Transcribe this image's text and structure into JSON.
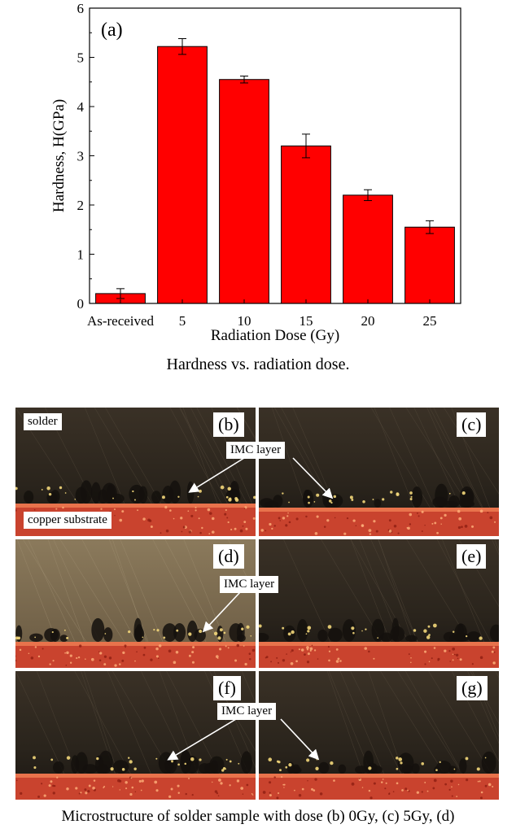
{
  "chart_data": {
    "type": "bar",
    "panel_label": "(a)",
    "categories": [
      "As-received",
      "5",
      "10",
      "15",
      "20",
      "25"
    ],
    "values": [
      0.2,
      5.22,
      4.55,
      3.2,
      2.2,
      1.55
    ],
    "errors": [
      0.1,
      0.16,
      0.07,
      0.24,
      0.11,
      0.13
    ],
    "ylabel": "Hardness, H(GPa)",
    "xlabel": "Radiation Dose (Gy)",
    "ylim": [
      0,
      6
    ],
    "yticks": [
      0,
      1,
      2,
      3,
      4,
      5,
      6
    ],
    "bar_color": "#ff0000",
    "grid": false,
    "caption": "Hardness vs. radiation dose."
  },
  "micrographs": {
    "panels": [
      {
        "id": "b",
        "label": "(b)",
        "tone": "dark",
        "substrate": "bright"
      },
      {
        "id": "c",
        "label": "(c)",
        "tone": "dark",
        "substrate": "bright"
      },
      {
        "id": "d",
        "label": "(d)",
        "tone": "light",
        "substrate": "bright"
      },
      {
        "id": "e",
        "label": "(e)",
        "tone": "dark",
        "substrate": "bright"
      },
      {
        "id": "f",
        "label": "(f)",
        "tone": "dark",
        "substrate": "bright"
      },
      {
        "id": "g",
        "label": "(g)",
        "tone": "dark",
        "substrate": "bright"
      }
    ],
    "solder_label": "solder",
    "substrate_label": "copper substrate",
    "imc_label": "IMC layer",
    "caption": "Microstructure of solder sample with dose (b) 0Gy, (c) 5Gy, (d)"
  }
}
